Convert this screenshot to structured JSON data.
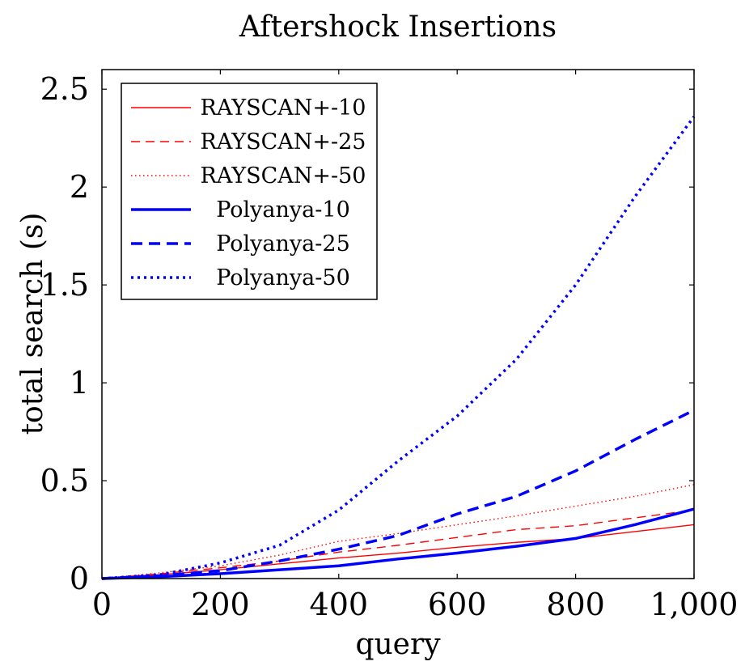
{
  "chart_data": {
    "type": "line",
    "title": "Aftershock Insertions",
    "xlabel": "query",
    "ylabel": "total search (s)",
    "xlim": [
      0,
      1000
    ],
    "ylim": [
      0,
      2.6
    ],
    "xticks": [
      0,
      200,
      400,
      600,
      800,
      1000
    ],
    "xtick_labels": [
      "0",
      "200",
      "400",
      "600",
      "800",
      "1,000"
    ],
    "yticks": [
      0,
      0.5,
      1,
      1.5,
      2,
      2.5
    ],
    "ytick_labels": [
      "0",
      "0.5",
      "1",
      "1.5",
      "2",
      "2.5"
    ],
    "grid": false,
    "legend_position": "top-left",
    "x": [
      0,
      100,
      200,
      300,
      400,
      500,
      600,
      700,
      800,
      900,
      1000
    ],
    "series": [
      {
        "name": "RAYSCAN+-10",
        "color": "#ff0000",
        "style": "solid",
        "weight": "thin",
        "values": [
          0,
          0.02,
          0.045,
          0.075,
          0.105,
          0.13,
          0.16,
          0.185,
          0.205,
          0.24,
          0.275
        ]
      },
      {
        "name": "RAYSCAN+-25",
        "color": "#ff0000",
        "style": "dashed",
        "weight": "thin",
        "values": [
          0,
          0.025,
          0.055,
          0.09,
          0.135,
          0.17,
          0.21,
          0.25,
          0.27,
          0.31,
          0.35
        ]
      },
      {
        "name": "RAYSCAN+-50",
        "color": "#ff0000",
        "style": "dotted",
        "weight": "thin",
        "values": [
          0,
          0.03,
          0.065,
          0.12,
          0.19,
          0.23,
          0.275,
          0.32,
          0.37,
          0.42,
          0.48
        ]
      },
      {
        "name": "Polyanya-10",
        "color": "#0000ff",
        "style": "solid",
        "weight": "thick",
        "values": [
          0,
          0.01,
          0.025,
          0.045,
          0.065,
          0.1,
          0.13,
          0.165,
          0.205,
          0.275,
          0.355
        ]
      },
      {
        "name": "Polyanya-25",
        "color": "#0000ff",
        "style": "dashed",
        "weight": "thick",
        "values": [
          0,
          0.015,
          0.04,
          0.09,
          0.15,
          0.22,
          0.33,
          0.42,
          0.55,
          0.71,
          0.86
        ]
      },
      {
        "name": "Polyanya-50",
        "color": "#0000ff",
        "style": "dotted",
        "weight": "thick",
        "values": [
          0,
          0.02,
          0.08,
          0.17,
          0.35,
          0.6,
          0.83,
          1.12,
          1.5,
          1.95,
          2.36
        ]
      }
    ]
  }
}
